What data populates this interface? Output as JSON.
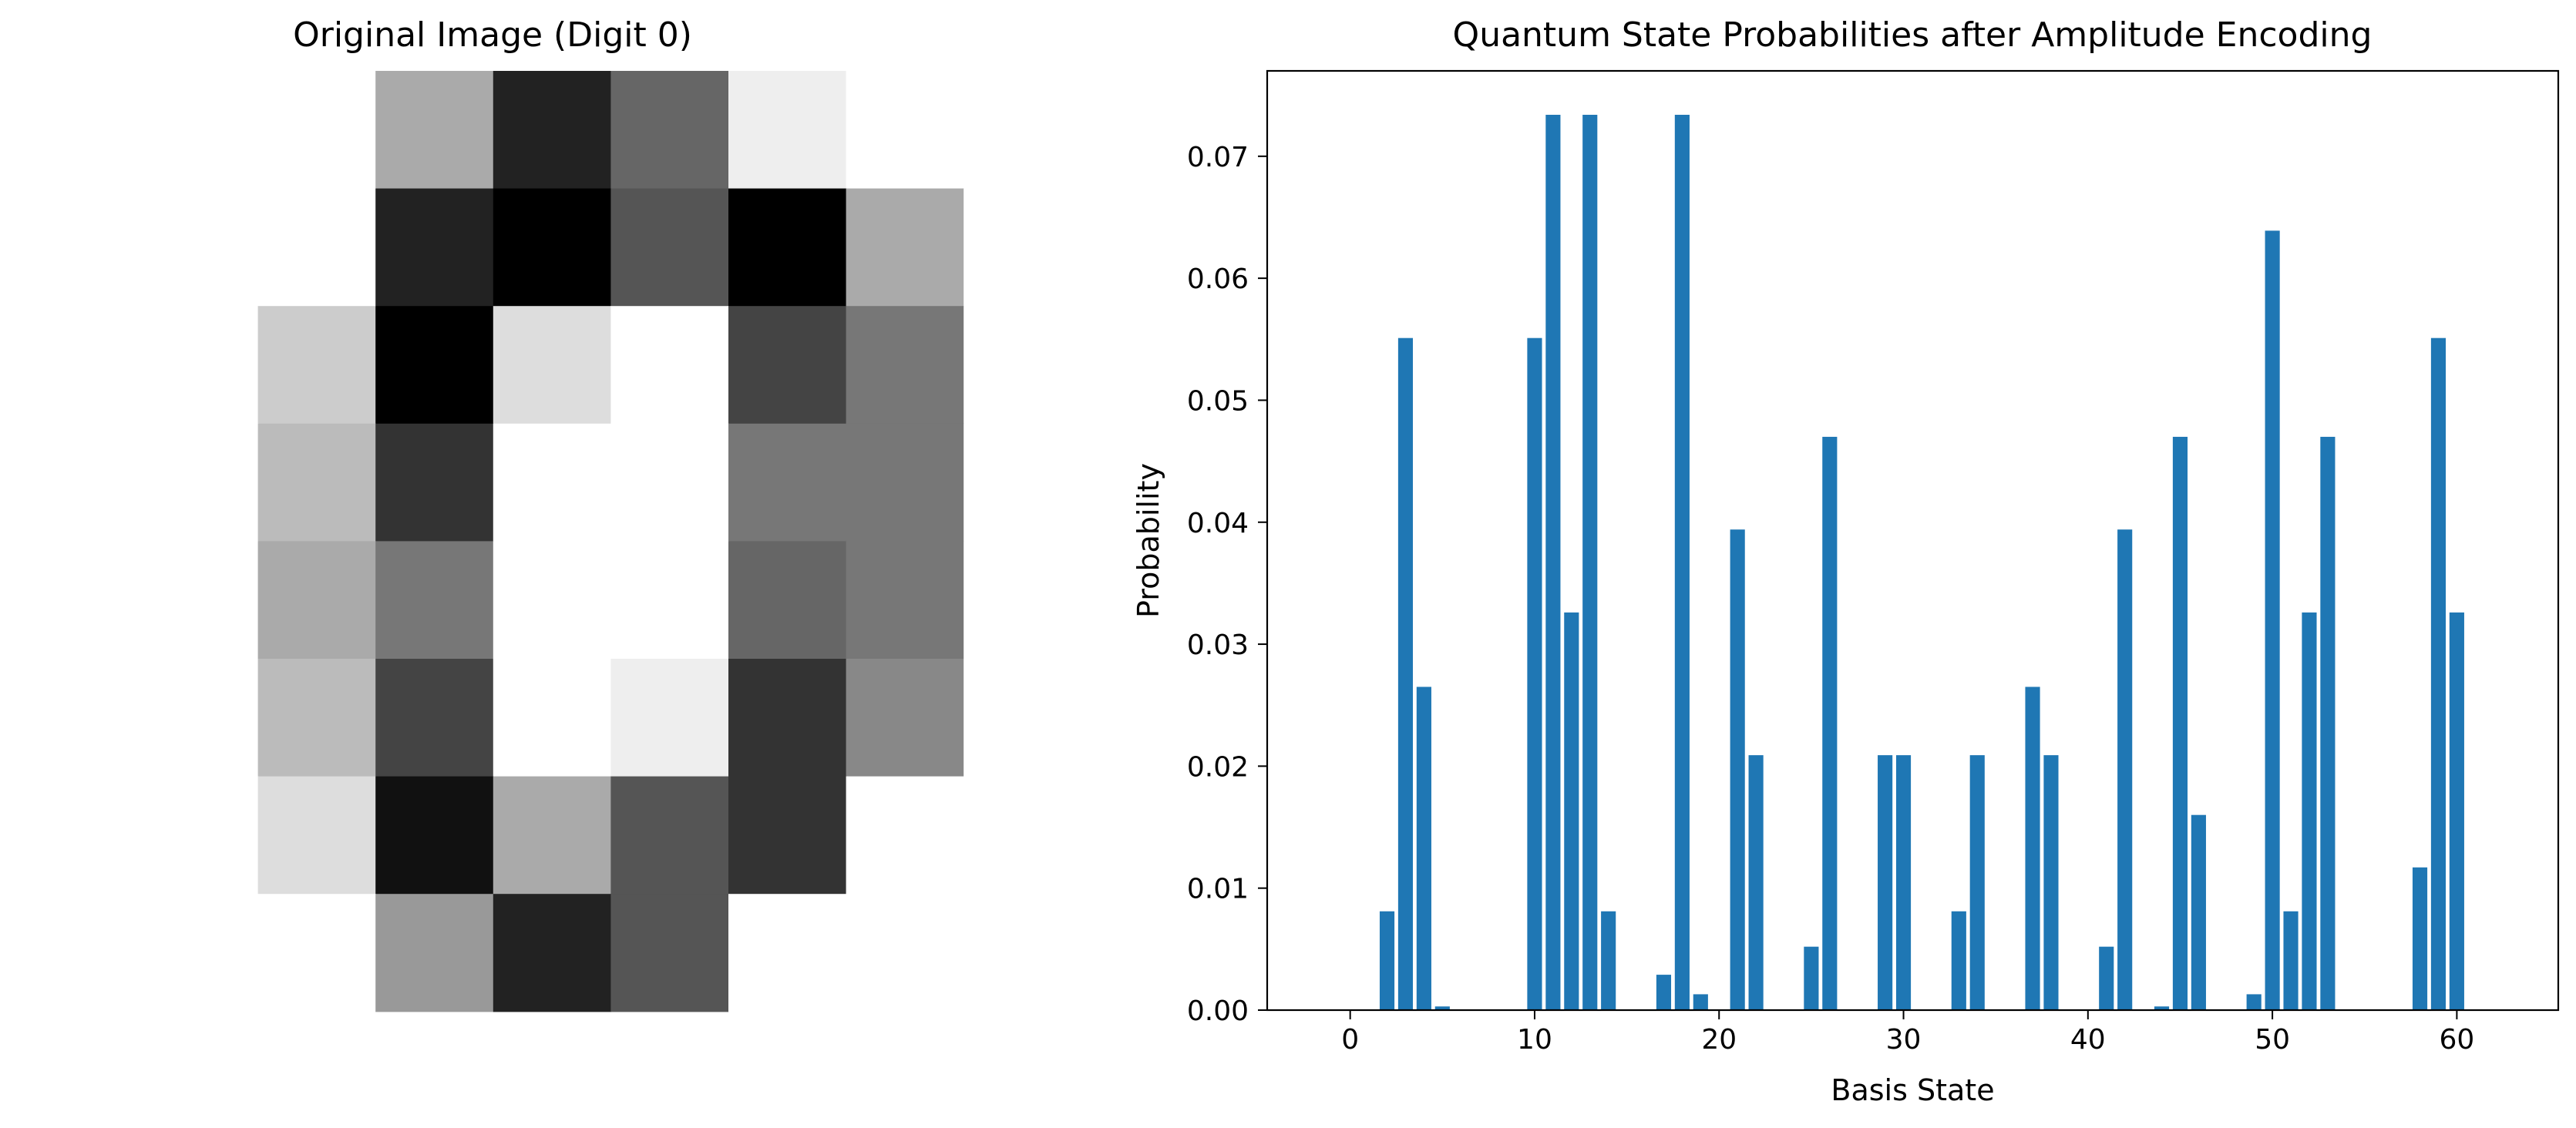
{
  "chart_data": [
    {
      "type": "heatmap",
      "title": "Original Image (Digit 0)",
      "colormap": "gray_r",
      "axes": "off",
      "rows": 8,
      "cols": 8,
      "values": [
        [
          0,
          0,
          5,
          13,
          9,
          1,
          0,
          0
        ],
        [
          0,
          0,
          13,
          15,
          10,
          15,
          5,
          0
        ],
        [
          0,
          3,
          15,
          2,
          0,
          11,
          8,
          0
        ],
        [
          0,
          4,
          12,
          0,
          0,
          8,
          8,
          0
        ],
        [
          0,
          5,
          8,
          0,
          0,
          9,
          8,
          0
        ],
        [
          0,
          4,
          11,
          0,
          1,
          12,
          7,
          0
        ],
        [
          0,
          2,
          14,
          5,
          10,
          12,
          0,
          0
        ],
        [
          0,
          0,
          6,
          13,
          10,
          0,
          0,
          0
        ]
      ]
    },
    {
      "type": "bar",
      "title": "Quantum State Probabilities after Amplitude Encoding",
      "xlabel": "Basis State",
      "ylabel": "Probability",
      "xlim": [
        -4.5,
        65.5
      ],
      "ylim": [
        0,
        0.077
      ],
      "xticks": [
        0,
        10,
        20,
        30,
        40,
        50,
        60
      ],
      "yticks": [
        0.0,
        0.01,
        0.02,
        0.03,
        0.04,
        0.05,
        0.06,
        0.07
      ],
      "ytick_labels": [
        "0.00",
        "0.01",
        "0.02",
        "0.03",
        "0.04",
        "0.05",
        "0.06",
        "0.07"
      ],
      "bar_color": "#1f77b4",
      "x": [
        0,
        1,
        2,
        3,
        4,
        5,
        6,
        7,
        8,
        9,
        10,
        11,
        12,
        13,
        14,
        15,
        16,
        17,
        18,
        19,
        20,
        21,
        22,
        23,
        24,
        25,
        26,
        27,
        28,
        29,
        30,
        31,
        32,
        33,
        34,
        35,
        36,
        37,
        38,
        39,
        40,
        41,
        42,
        43,
        44,
        45,
        46,
        47,
        48,
        49,
        50,
        51,
        52,
        53,
        54,
        55,
        56,
        57,
        58,
        59,
        60,
        61,
        62,
        63
      ],
      "values": [
        0,
        0,
        0.0081,
        0.0551,
        0.0265,
        0.0003,
        0,
        0,
        0,
        0,
        0.0551,
        0.0734,
        0.0326,
        0.0734,
        0.0081,
        0,
        0,
        0.0029,
        0.0734,
        0.0013,
        0,
        0.0394,
        0.0209,
        0,
        0,
        0.0052,
        0.047,
        0,
        0,
        0.0209,
        0.0209,
        0,
        0,
        0.0081,
        0.0209,
        0,
        0,
        0.0265,
        0.0209,
        0,
        0,
        0.0052,
        0.0394,
        0,
        0.0003,
        0.047,
        0.016,
        0,
        0,
        0.0013,
        0.0639,
        0.0081,
        0.0326,
        0.047,
        0,
        0,
        0,
        0,
        0.0117,
        0.0551,
        0.0326,
        0,
        0,
        0
      ]
    }
  ]
}
